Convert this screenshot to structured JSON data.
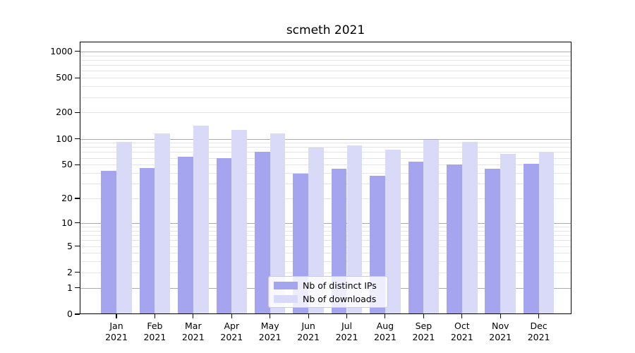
{
  "chart_data": {
    "type": "bar",
    "title": "scmeth 2021",
    "year": "2021",
    "categories": [
      "Jan",
      "Feb",
      "Mar",
      "Apr",
      "May",
      "Jun",
      "Jul",
      "Aug",
      "Sep",
      "Oct",
      "Nov",
      "Dec"
    ],
    "series": [
      {
        "name": "Nb of distinct IPs",
        "color": "#a4a4ef",
        "values": [
          42,
          46,
          62,
          60,
          70,
          39,
          45,
          37,
          54,
          50,
          45,
          51
        ]
      },
      {
        "name": "Nb of downloads",
        "color": "#d9d9f8",
        "values": [
          92,
          116,
          141,
          126,
          115,
          79,
          84,
          75,
          97,
          92,
          67,
          71
        ]
      }
    ],
    "yscale": "log1p",
    "y_ticks": [
      0,
      1,
      2,
      5,
      10,
      20,
      50,
      100,
      200,
      500,
      1000
    ],
    "ylim": [
      0,
      1300
    ],
    "grid": true,
    "legend_position": "lower center",
    "colors": {
      "major_grid": "#ababab",
      "minor_grid": "#e4e4e4",
      "axis": "#000000",
      "background": "#ffffff"
    }
  }
}
